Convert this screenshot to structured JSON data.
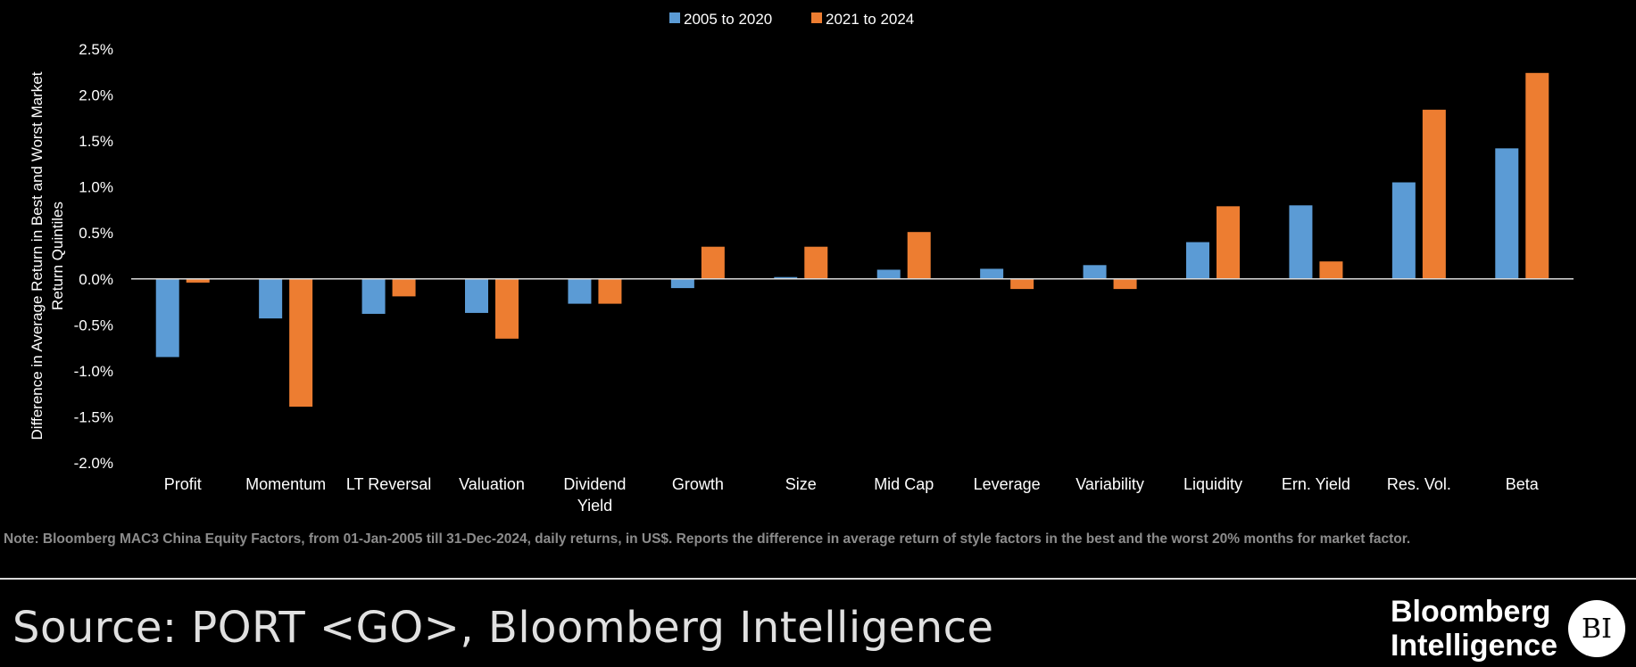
{
  "chart_data": {
    "type": "bar",
    "title": "",
    "xlabel": "",
    "ylabel": "Difference in Average Return in Best and Worst Market Return Quintiles",
    "ylim": [
      -2.0,
      2.5
    ],
    "yticks": [
      "2.5%",
      "2.0%",
      "1.5%",
      "1.0%",
      "0.5%",
      "0.0%",
      "-0.5%",
      "-1.0%",
      "-1.5%",
      "-2.0%"
    ],
    "ytick_values": [
      2.5,
      2.0,
      1.5,
      1.0,
      0.5,
      0.0,
      -0.5,
      -1.0,
      -1.5,
      -2.0
    ],
    "grid": false,
    "legend_position": "top-center",
    "categories": [
      "Profit",
      "Momentum",
      "LT Reversal",
      "Valuation",
      "Dividend Yield",
      "Growth",
      "Size",
      "Mid Cap",
      "Leverage",
      "Variability",
      "Liquidity",
      "Ern. Yield",
      "Res. Vol.",
      "Beta"
    ],
    "series": [
      {
        "name": "2005 to 2020",
        "color": "#5b9bd5",
        "values": [
          -0.85,
          -0.43,
          -0.38,
          -0.37,
          -0.27,
          -0.1,
          0.02,
          0.1,
          0.11,
          0.15,
          0.4,
          0.8,
          1.05,
          1.42
        ]
      },
      {
        "name": "2021 to 2024",
        "color": "#ed7d31",
        "values": [
          -0.04,
          -1.39,
          -0.19,
          -0.65,
          -0.27,
          0.35,
          0.35,
          0.51,
          -0.11,
          -0.11,
          0.79,
          0.19,
          1.84,
          2.24
        ]
      }
    ]
  },
  "footer": {
    "note": "Note: Bloomberg MAC3 China Equity Factors, from 01-Jan-2005 till 31-Dec-2024, daily returns, in US$. Reports the difference in average return of style factors in the best and the worst 20% months for market factor.",
    "source": "Source: PORT <GO>, Bloomberg Intelligence",
    "logo_line1": "Bloomberg",
    "logo_line2": "Intelligence",
    "logo_badge": "BI"
  }
}
